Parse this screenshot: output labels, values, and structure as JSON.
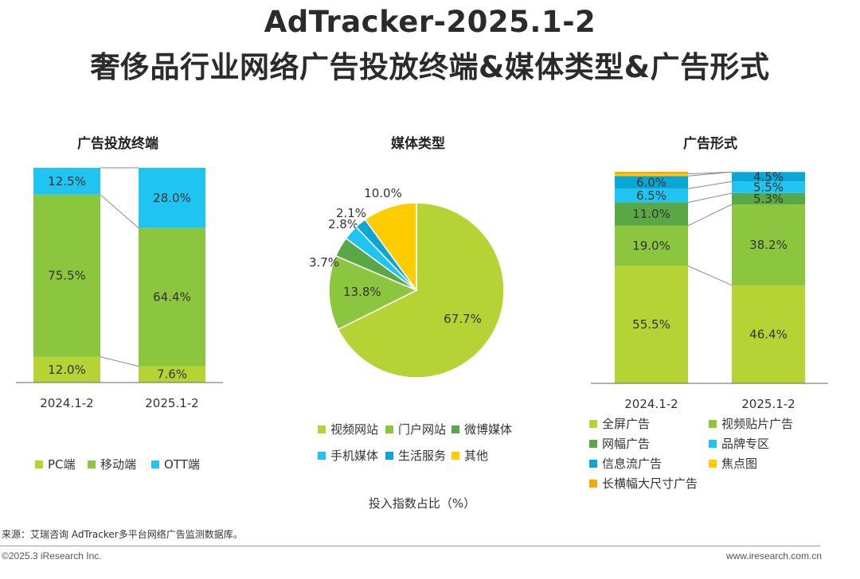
{
  "title": {
    "line1": "AdTracker-2025.1-2",
    "line2": "奢侈品行业网络广告投放终端&媒体类型&广告形式"
  },
  "unit_label": "投入指数占比（%）",
  "footer": {
    "source": "来源：艾瑞咨询 AdTracker多平台网络广告监测数据库。",
    "copyright": "©2025.3 iResearch Inc.",
    "website": "www.iresearch.com.cn"
  },
  "chart_data": [
    {
      "type": "bar",
      "stacked": true,
      "title": "广告投放终端",
      "categories": [
        "2024.1-2",
        "2025.1-2"
      ],
      "series": [
        {
          "name": "PC端",
          "color": "#b6d335",
          "values": [
            12.0,
            7.6
          ],
          "labels": [
            "12.0%",
            "7.6%"
          ]
        },
        {
          "name": "移动端",
          "color": "#8cc63f",
          "values": [
            75.5,
            64.4
          ],
          "labels": [
            "75.5%",
            "64.4%"
          ]
        },
        {
          "name": "OTT端",
          "color": "#1fc4f0",
          "values": [
            12.5,
            28.0
          ],
          "labels": [
            "12.5%",
            "28.0%"
          ]
        }
      ],
      "ylim": [
        0,
        100
      ]
    },
    {
      "type": "pie",
      "title": "媒体类型",
      "slices": [
        {
          "name": "视频网站",
          "value": 67.7,
          "label": "67.7%",
          "color": "#b6d335"
        },
        {
          "name": "门户网站",
          "value": 13.8,
          "label": "13.8%",
          "color": "#8cc63f"
        },
        {
          "name": "微博媒体",
          "value": 3.7,
          "label": "3.7%",
          "color": "#5aa845"
        },
        {
          "name": "手机媒体",
          "value": 2.8,
          "label": "2.8%",
          "color": "#1fc4f0"
        },
        {
          "name": "生活服务",
          "value": 2.1,
          "label": "2.1%",
          "color": "#0aa6d6"
        },
        {
          "name": "其他",
          "value": 10.0,
          "label": "10.0%",
          "color": "#ffcc00"
        }
      ]
    },
    {
      "type": "bar",
      "stacked": true,
      "title": "广告形式",
      "categories": [
        "2024.1-2",
        "2025.1-2"
      ],
      "series": [
        {
          "name": "全屏广告",
          "color": "#b6d335",
          "values": [
            55.5,
            46.4
          ],
          "labels": [
            "55.5%",
            "46.4%"
          ]
        },
        {
          "name": "视频贴片广告",
          "color": "#8cc63f",
          "values": [
            19.0,
            38.2
          ],
          "labels": [
            "19.0%",
            "38.2%"
          ]
        },
        {
          "name": "网幅广告",
          "color": "#5aa845",
          "values": [
            11.0,
            5.3
          ],
          "labels": [
            "11.0%",
            "5.3%"
          ]
        },
        {
          "name": "品牌专区",
          "color": "#1fc4f0",
          "values": [
            6.5,
            5.5
          ],
          "labels": [
            "6.5%",
            "5.5%"
          ]
        },
        {
          "name": "信息流广告",
          "color": "#0aa6d6",
          "values": [
            6.0,
            4.5
          ],
          "labels": [
            "6.0%",
            "4.5%"
          ]
        },
        {
          "name": "焦点图",
          "color": "#ffcc00",
          "values": [
            1.0,
            0.0
          ],
          "labels": [
            "",
            ""
          ]
        },
        {
          "name": "长横幅大尺寸广告",
          "color": "#f5a800",
          "values": [
            1.0,
            0.0
          ],
          "labels": [
            "",
            ""
          ]
        }
      ],
      "ylim": [
        0,
        100
      ]
    }
  ]
}
